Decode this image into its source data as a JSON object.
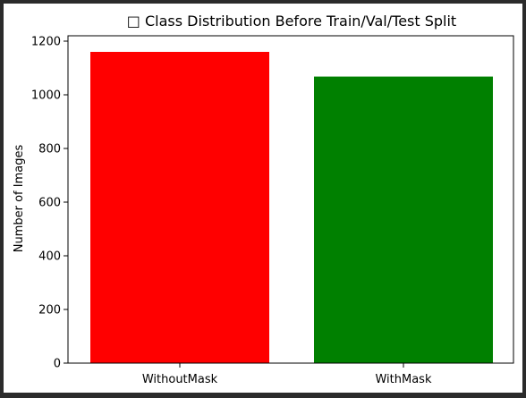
{
  "chart_data": {
    "type": "bar",
    "title": "□ Class Distribution Before Train/Val/Test Split",
    "xlabel": "",
    "ylabel": "Number of Images",
    "categories": [
      "WithoutMask",
      "WithMask"
    ],
    "values": [
      1160,
      1068
    ],
    "colors": [
      "#ff0000",
      "#008000"
    ],
    "ylim": [
      0,
      1220
    ],
    "yticks": [
      0,
      200,
      400,
      600,
      800,
      1000,
      1200
    ],
    "grid": false,
    "legend": "none"
  }
}
